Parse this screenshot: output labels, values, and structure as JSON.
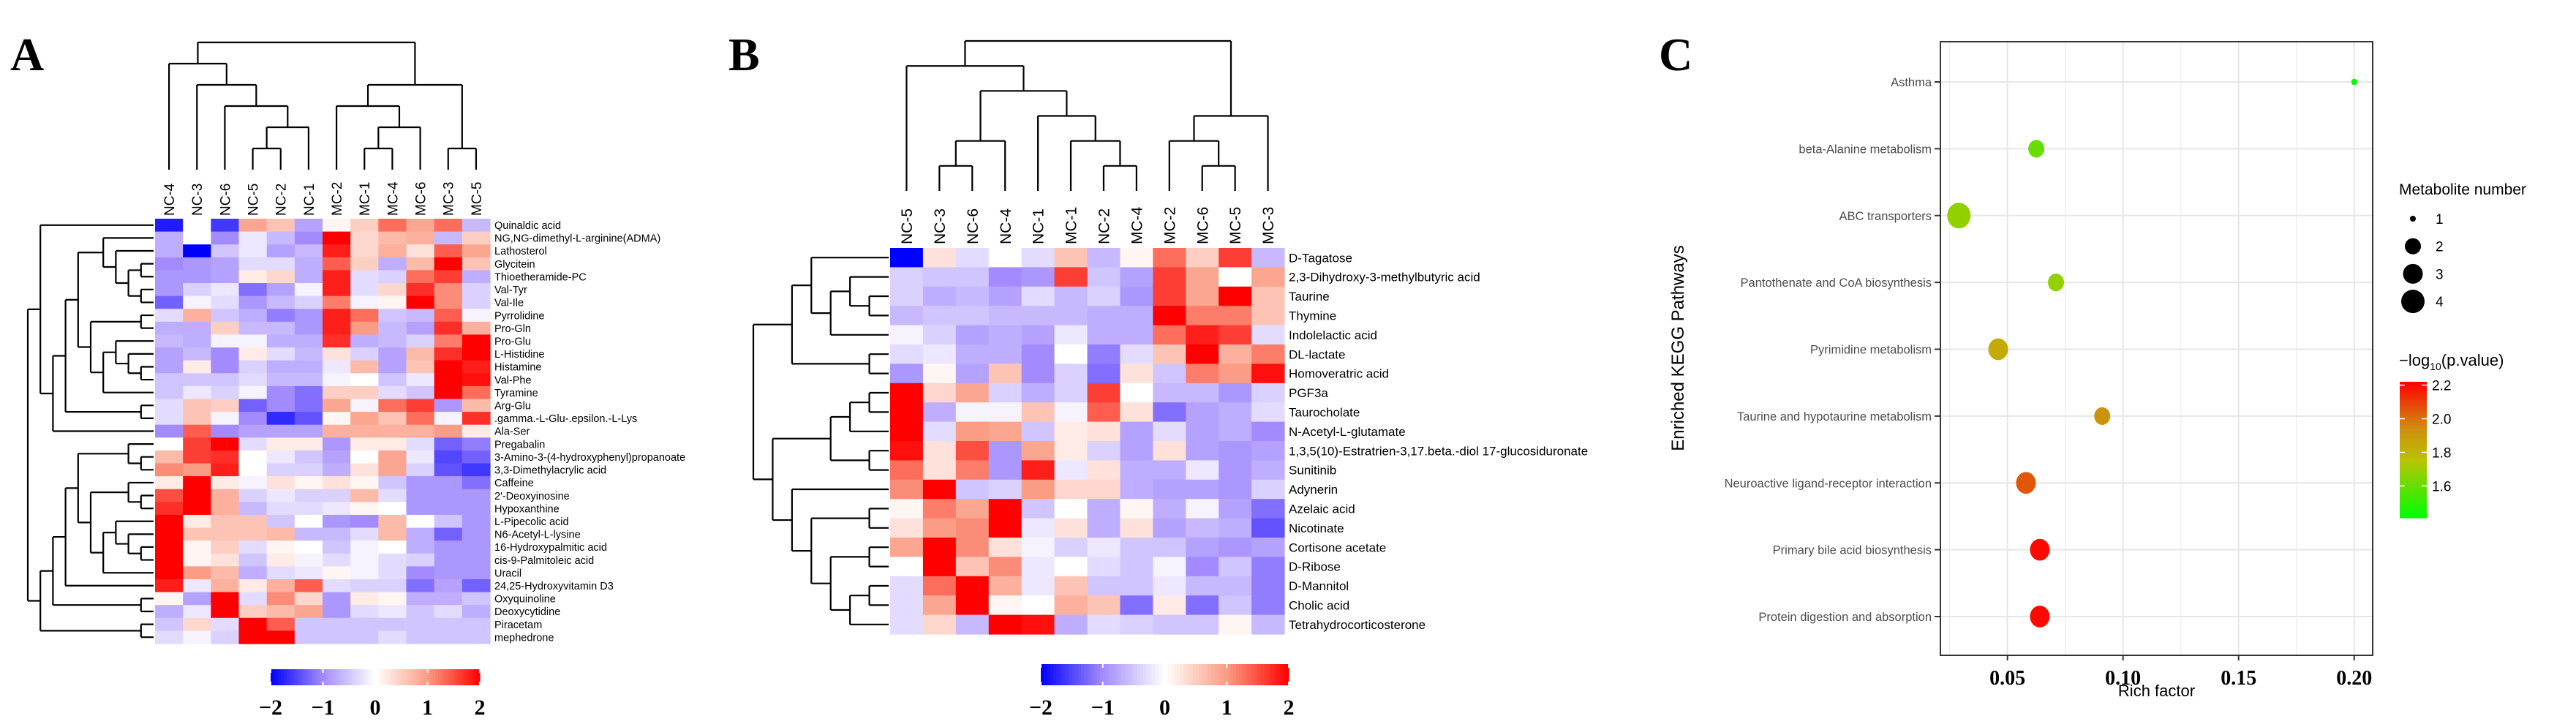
{
  "colorscale": {
    "stops": [
      -2,
      -1,
      0,
      1,
      2
    ],
    "colors": [
      "#0000ff",
      "#a38bff",
      "#ffffff",
      "#fb9c84",
      "#ff0000"
    ]
  },
  "chart_data": [
    {
      "type": "heatmap",
      "panel": "A",
      "columns": [
        "NC-4",
        "NC-3",
        "NC-6",
        "NC-5",
        "NC-2",
        "NC-1",
        "MC-2",
        "MC-1",
        "MC-4",
        "MC-6",
        "MC-3",
        "MC-5"
      ],
      "rows": [
        "Quinaldic acid",
        "NG,NG-dimethyl-L-arginine(ADMA)",
        "Lathosterol",
        "Glycitein",
        "Thioetheramide-PC",
        "Val-Tyr",
        "Val-Ile",
        "Pyrrolidine",
        "Pro-Gln",
        "Pro-Glu",
        "L-Histidine",
        "Histamine",
        "Val-Phe",
        "Tyramine",
        "Arg-Glu",
        ".gamma.-L-Glu-.epsilon.-L-Lys",
        "Ala-Ser",
        "Pregabalin",
        "3-Amino-3-(4-hydroxyphenyl)propanoate",
        "3,3-Dimethylacrylic acid",
        "Caffeine",
        "2'-Deoxyinosine",
        "Hypoxanthine",
        "L-Pipecolic acid",
        "N6-Acetyl-L-lysine",
        "16-Hydroxypalmitic acid",
        "cis-9-Palmitoleic acid",
        "Uracil",
        "24,25-Hydroxyvitamin D3",
        "Oxyquinoline",
        "Deoxycytidine",
        "Piracetam",
        "mephedrone"
      ],
      "values": [
        [
          -1.8,
          0,
          -1.6,
          0.9,
          0.6,
          -0.8,
          0.1,
          0.5,
          1.3,
          0.9,
          1.3,
          -0.6
        ],
        [
          -0.7,
          0,
          -1.0,
          -0.2,
          -0.6,
          -1.0,
          2.0,
          0.4,
          0.7,
          0.8,
          -0.6,
          0.5
        ],
        [
          -0.7,
          -2.0,
          -0.5,
          -0.2,
          -0.8,
          -0.6,
          1.8,
          0.4,
          0.8,
          0.3,
          1.4,
          0.9
        ],
        [
          -1.0,
          -0.9,
          -0.8,
          -0.3,
          -0.3,
          -0.7,
          1.4,
          0.5,
          -0.7,
          0.7,
          2.0,
          0.6
        ],
        [
          -0.9,
          -0.9,
          -0.8,
          0.2,
          0.4,
          -0.7,
          1.8,
          -0.3,
          -0.4,
          1.3,
          1.6,
          -0.7
        ],
        [
          -0.9,
          -0.4,
          -0.2,
          -1.2,
          -0.8,
          -0.1,
          1.8,
          -0.3,
          0.4,
          1.7,
          1.1,
          -0.4
        ],
        [
          -1.3,
          -0.1,
          -0.3,
          -0.9,
          -0.6,
          -0.4,
          1.2,
          -0.1,
          0.1,
          2.0,
          1.1,
          -0.4
        ],
        [
          -0.3,
          0.8,
          -0.5,
          -0.7,
          -1.1,
          -0.9,
          1.8,
          1.3,
          -0.5,
          -0.6,
          1.4,
          -0.1
        ],
        [
          -0.7,
          -0.7,
          0.5,
          -0.6,
          -0.6,
          -0.9,
          1.8,
          1.0,
          -0.6,
          -0.8,
          1.7,
          0.8
        ],
        [
          -0.6,
          -0.7,
          -0.1,
          -0.1,
          -0.7,
          -0.7,
          1.7,
          -0.7,
          -0.6,
          -0.4,
          1.2,
          2.0
        ],
        [
          -0.8,
          -0.6,
          -1.0,
          0.2,
          -0.3,
          -0.6,
          0.3,
          -0.4,
          -0.8,
          0.7,
          1.7,
          2.0
        ],
        [
          -0.8,
          0.2,
          -1.0,
          -0.4,
          -0.7,
          -0.7,
          -0.2,
          0.7,
          -0.8,
          0.6,
          2.0,
          1.8
        ],
        [
          -0.5,
          -0.5,
          -0.5,
          -0.3,
          -0.6,
          -0.6,
          -0.1,
          0,
          -0.5,
          -0.2,
          2.0,
          1.9
        ],
        [
          -0.5,
          -0.2,
          -0.4,
          -0.1,
          -1.0,
          -1.2,
          0.5,
          0.5,
          -0.3,
          -0.5,
          2.0,
          1.3
        ],
        [
          -0.3,
          0.6,
          0.5,
          -1.3,
          -1.0,
          -1.2,
          0.9,
          -0.1,
          1.3,
          1.6,
          -0.9,
          0.7
        ],
        [
          -0.3,
          0.6,
          -0.1,
          -1.0,
          -1.7,
          -1.4,
          0.1,
          0.9,
          0.6,
          1.3,
          -0.1,
          1.7
        ],
        [
          -1.0,
          1.4,
          -1.0,
          -0.8,
          -0.8,
          -0.8,
          0.8,
          0.8,
          0.8,
          0.8,
          1.0,
          0.2
        ],
        [
          0,
          1.6,
          2.0,
          -0.3,
          0.2,
          0.2,
          -0.9,
          0.2,
          0.2,
          -0.3,
          -1.3,
          -1.1
        ],
        [
          0.7,
          1.6,
          1.7,
          0,
          -0.2,
          -0.5,
          -0.8,
          0,
          0.9,
          -0.2,
          -1.5,
          -1.3
        ],
        [
          1.1,
          1.0,
          1.8,
          0,
          -0.4,
          -0.4,
          -0.7,
          0.3,
          0.9,
          -0.4,
          -1.4,
          -1.6
        ],
        [
          0.2,
          2.0,
          0.2,
          -0.1,
          0.3,
          0.1,
          0.3,
          0.1,
          -0.5,
          -0.9,
          -0.9,
          -1.2
        ],
        [
          1.5,
          2.0,
          0.8,
          -0.4,
          -0.2,
          -0.4,
          -0.4,
          0.7,
          -0.3,
          -0.9,
          -0.9,
          -0.9
        ],
        [
          1.7,
          2.0,
          0.8,
          -0.6,
          -0.3,
          -0.3,
          -0.2,
          0.1,
          0,
          -0.9,
          -0.9,
          -0.9
        ],
        [
          2.0,
          0.2,
          0.6,
          0.6,
          -0.5,
          0,
          -0.9,
          -1.0,
          0.7,
          0,
          -0.5,
          -0.9
        ],
        [
          2.0,
          0.6,
          0.6,
          0.6,
          0.7,
          -0.6,
          -0.6,
          -0.3,
          0.7,
          -0.7,
          -1.3,
          -0.9
        ],
        [
          2.0,
          0.1,
          0.5,
          -0.3,
          0.1,
          0,
          -0.5,
          -0.1,
          0,
          -0.7,
          -0.9,
          -0.9
        ],
        [
          2.0,
          0.1,
          0.3,
          -0.5,
          0.2,
          -0.1,
          -0.3,
          -0.1,
          -0.3,
          -0.4,
          -0.9,
          -0.9
        ],
        [
          2.0,
          1.0,
          0.7,
          -0.7,
          -0.3,
          -0.2,
          0.1,
          -0.1,
          -0.3,
          -1.0,
          -0.9,
          -0.9
        ],
        [
          1.8,
          -0.2,
          0.8,
          0.2,
          0.8,
          1.4,
          -0.3,
          -0.4,
          -0.4,
          -1.2,
          -0.8,
          -1.3
        ],
        [
          0.1,
          -0.8,
          2.0,
          -0.3,
          1.1,
          0.4,
          -0.9,
          0.2,
          0.1,
          -0.7,
          -0.7,
          -0.5
        ],
        [
          -0.7,
          -0.2,
          2.0,
          0.5,
          0.7,
          0.9,
          -0.9,
          -0.3,
          -0.2,
          -0.5,
          -0.3,
          -0.7
        ],
        [
          -0.5,
          0.4,
          -0.3,
          2.0,
          1.4,
          -0.5,
          -0.5,
          -0.5,
          -0.5,
          -0.5,
          -0.5,
          -0.5
        ],
        [
          -0.3,
          -0.1,
          -0.4,
          2.0,
          2.0,
          -0.5,
          -0.5,
          -0.5,
          -0.3,
          -0.5,
          -0.5,
          -0.5
        ]
      ],
      "colorbar_ticks": [
        "−2",
        "−1",
        "0",
        "1",
        "2"
      ],
      "range": [
        -2,
        2
      ]
    },
    {
      "type": "heatmap",
      "panel": "B",
      "columns": [
        "NC-5",
        "NC-3",
        "NC-6",
        "NC-4",
        "NC-1",
        "MC-1",
        "NC-2",
        "MC-4",
        "MC-2",
        "MC-6",
        "MC-5",
        "MC-3"
      ],
      "rows": [
        "D-Tagatose",
        "2,3-Dihydroxy-3-methylbutyric acid",
        "Taurine",
        "Thymine",
        "Indolelactic acid",
        "DL-lactate",
        "Homoveratric acid",
        "PGF3a",
        "Taurocholate",
        "N-Acetyl-L-glutamate",
        "1,3,5(10)-Estratrien-3,17.beta.-diol 17-glucosiduronate",
        "Sunitinib",
        "Adynerin",
        "Azelaic acid",
        "Nicotinate",
        "Cortisone acetate",
        "D-Ribose",
        "D-Mannitol",
        "Cholic acid",
        "Tetrahydrocorticosterone"
      ],
      "values": [
        [
          -2.0,
          0.3,
          -0.3,
          0,
          -0.3,
          0.6,
          -0.6,
          0.1,
          1.3,
          0.5,
          1.6,
          -0.6
        ],
        [
          -0.4,
          -0.5,
          -0.5,
          -1.0,
          -0.9,
          1.6,
          -0.5,
          -0.8,
          1.6,
          0.9,
          0,
          0.9
        ],
        [
          -0.4,
          -0.7,
          -0.6,
          -0.8,
          -0.3,
          -0.6,
          -0.4,
          -0.9,
          1.6,
          0.9,
          2.0,
          0.6
        ],
        [
          -0.6,
          -0.5,
          -0.5,
          -0.6,
          -0.6,
          -0.6,
          -0.7,
          -0.7,
          2.0,
          1.2,
          1.2,
          0.6
        ],
        [
          -0.1,
          -0.4,
          -0.8,
          -0.7,
          -0.8,
          -0.2,
          -0.7,
          -0.7,
          1.3,
          1.8,
          1.6,
          -0.3
        ],
        [
          -0.3,
          -0.2,
          -0.7,
          -0.7,
          -1.0,
          0,
          -1.1,
          -0.3,
          0.6,
          2.0,
          0.8,
          1.2
        ],
        [
          -0.9,
          0.1,
          -0.8,
          0.6,
          -1.0,
          -0.4,
          -1.2,
          0.3,
          -0.5,
          1.2,
          1.0,
          1.9
        ],
        [
          2.0,
          0.4,
          0.9,
          -0.4,
          -0.7,
          -0.4,
          1.6,
          0,
          -0.6,
          -0.6,
          -0.9,
          -0.4
        ],
        [
          2.0,
          -0.7,
          -0.1,
          -0.1,
          0.6,
          -0.1,
          1.4,
          0.3,
          -1.2,
          -0.8,
          -0.7,
          -0.3
        ],
        [
          2.0,
          -0.3,
          1.0,
          0.9,
          -0.5,
          0.2,
          0.3,
          -0.8,
          -0.3,
          -0.8,
          -0.7,
          -1.0
        ],
        [
          1.9,
          0.3,
          1.5,
          -0.9,
          0.9,
          0.2,
          -0.4,
          -0.8,
          0.3,
          -0.8,
          -0.9,
          -0.8
        ],
        [
          1.3,
          0.3,
          1.2,
          -0.9,
          1.8,
          -0.2,
          0.3,
          -0.7,
          -0.7,
          -0.2,
          -0.9,
          -0.7
        ],
        [
          1.1,
          2.0,
          -0.5,
          -0.4,
          1.0,
          0.4,
          0.4,
          -0.7,
          -0.8,
          -0.8,
          -0.9,
          -0.4
        ],
        [
          0.1,
          1.2,
          0.9,
          2.0,
          -0.5,
          0,
          -0.7,
          0.1,
          -0.7,
          -0.1,
          -0.8,
          -1.2
        ],
        [
          0.3,
          1.0,
          1.1,
          2.0,
          -0.2,
          0.3,
          -0.7,
          0.3,
          -0.8,
          -0.6,
          -0.7,
          -1.4
        ],
        [
          0.9,
          2.0,
          1.1,
          0.3,
          -0.1,
          -0.4,
          -0.2,
          -0.5,
          -0.5,
          -0.8,
          -0.9,
          -0.8
        ],
        [
          0,
          2.0,
          0.6,
          1.1,
          -0.2,
          0,
          -0.3,
          -0.5,
          -0.1,
          -1.0,
          -0.5,
          -1.1
        ],
        [
          -0.3,
          1.3,
          2.0,
          0.8,
          -0.2,
          0.6,
          -0.5,
          -0.5,
          -0.2,
          -0.6,
          -0.6,
          -1.1
        ],
        [
          -0.3,
          0.9,
          2.0,
          0.1,
          0,
          0.8,
          0.6,
          -1.2,
          0.2,
          -1.2,
          -0.5,
          -1.1
        ],
        [
          -0.3,
          0.4,
          -0.6,
          2.0,
          1.9,
          -0.7,
          -0.3,
          -0.4,
          -0.5,
          -0.5,
          0.1,
          -0.6
        ]
      ],
      "colorbar_ticks": [
        "−2",
        "−1",
        "0",
        "1",
        "2"
      ],
      "range": [
        -2,
        2
      ]
    },
    {
      "type": "scatter",
      "panel": "C",
      "title": "",
      "xlabel": "Rich factor",
      "ylabel": "Enriched KEGG Pathways",
      "xlim": [
        0.021,
        0.208
      ],
      "xticks": [
        0.05,
        0.1,
        0.15,
        0.2
      ],
      "xtick_labels": [
        "0.05",
        "0.10",
        "0.15",
        "0.20"
      ],
      "grid": true,
      "categories": [
        "Asthma",
        "beta-Alanine metabolism",
        "ABC transporters",
        "Pantothenate and CoA biosynthesis",
        "Pyrimidine metabolism",
        "Taurine and hypotaurine metabolism",
        "Neuroactive ligand-receptor interaction",
        "Primary bile acid biosynthesis",
        "Protein digestion and absorption"
      ],
      "rich_factor": [
        0.2,
        0.0625,
        0.029,
        0.071,
        0.046,
        0.091,
        0.058,
        0.064,
        0.064
      ],
      "metabolite_number": [
        1,
        2,
        4,
        2,
        3,
        2,
        3,
        3,
        3
      ],
      "neg_log10_p": [
        1.42,
        1.6,
        1.68,
        1.68,
        1.84,
        1.92,
        2.05,
        2.2,
        2.2
      ],
      "size_legend": {
        "title": "Metabolite number",
        "values": [
          "1",
          "2",
          "3",
          "4"
        ]
      },
      "color_legend": {
        "title_prefix": "−log",
        "title_sub": "10",
        "title_suffix": "(p.value)",
        "ticks": [
          "2.2",
          "2.0",
          "1.8",
          "1.6"
        ],
        "tick_values": [
          2.2,
          2.0,
          1.8,
          1.6
        ],
        "range": [
          1.41,
          2.22
        ],
        "colors": [
          "#00ff00",
          "#b8c400",
          "#d08a10",
          "#ff0000"
        ]
      },
      "legend_position": "right"
    }
  ],
  "panels": {
    "a": "A",
    "b": "B",
    "c": "C"
  }
}
